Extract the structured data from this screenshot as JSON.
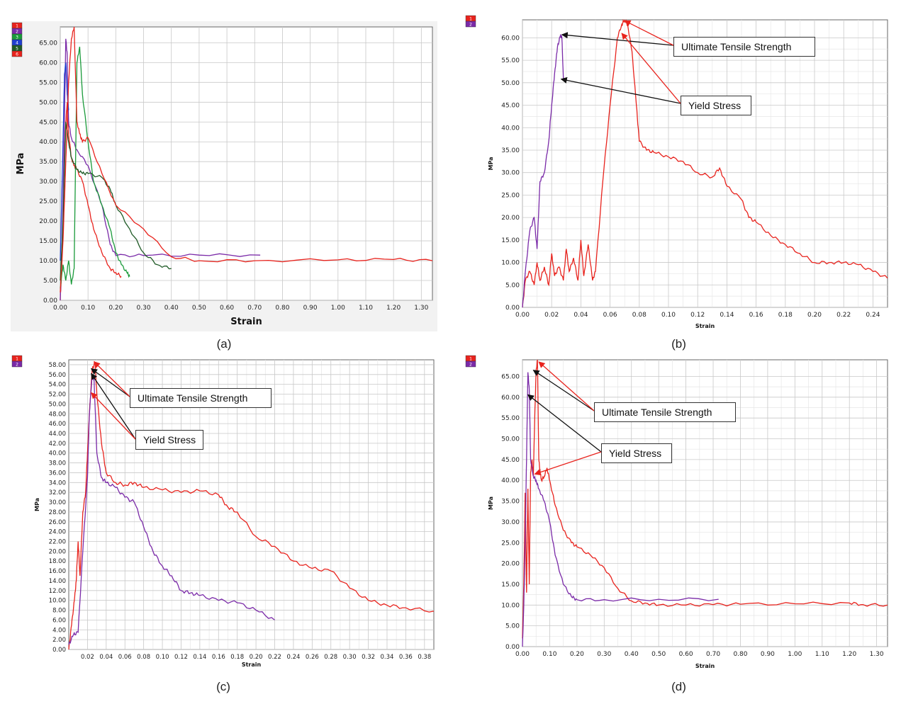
{
  "captions": {
    "a": "(a)",
    "b": "(b)",
    "c": "(c)",
    "d": "(d)"
  },
  "annotations": {
    "uts": "Ultimate Tensile Strength",
    "ys": "Yield Stress"
  },
  "colors": {
    "s1": "#e8231d",
    "s2": "#7a2aa8",
    "s3": "#1a9a3a",
    "s4": "#1f3fd0",
    "s5": "#1f5a26",
    "s6": "#e8231d",
    "grid": "#c8c8c8",
    "plotbg": "#ffffff",
    "framebg": "#f2f2f2"
  },
  "chart_data": [
    {
      "id": "a",
      "type": "line",
      "xlabel": "Strain",
      "ylabel": "MPa",
      "xlim": [
        0,
        1.34
      ],
      "ylim": [
        0,
        69
      ],
      "xticks": [
        "0.00",
        "0.10",
        "0.20",
        "0.30",
        "0.40",
        "0.50",
        "0.60",
        "0.70",
        "0.80",
        "0.90",
        "1.00",
        "1.10",
        "1.20",
        "1.30"
      ],
      "xtick_values": [
        0,
        0.1,
        0.2,
        0.3,
        0.4,
        0.5,
        0.6,
        0.7,
        0.8,
        0.9,
        1.0,
        1.1,
        1.2,
        1.3
      ],
      "yticks": [
        "0.00",
        "5.00",
        "10.00",
        "15.00",
        "20.00",
        "25.00",
        "30.00",
        "35.00",
        "40.00",
        "45.00",
        "50.00",
        "55.00",
        "60.00",
        "65.00"
      ],
      "ytick_values": [
        0,
        5,
        10,
        15,
        20,
        25,
        30,
        35,
        40,
        45,
        50,
        55,
        60,
        65
      ],
      "legend": [
        "1",
        "2",
        "3",
        "4",
        "5",
        "6"
      ],
      "series": [
        {
          "name": "1",
          "color": "#e8231d",
          "x": [
            0,
            0.005,
            0.01,
            0.015,
            0.02,
            0.025,
            0.03,
            0.04,
            0.05,
            0.06,
            0.08,
            0.1,
            0.12,
            0.15,
            0.18,
            0.2,
            0.22
          ],
          "y": [
            0,
            8,
            20,
            35,
            45,
            50,
            42,
            36,
            34,
            33,
            30,
            24,
            18,
            12,
            8,
            7,
            6
          ]
        },
        {
          "name": "2",
          "color": "#7a2aa8",
          "x": [
            0,
            0.005,
            0.01,
            0.015,
            0.02,
            0.025,
            0.03,
            0.04,
            0.06,
            0.1,
            0.15,
            0.18,
            0.2,
            0.3,
            0.5,
            0.72
          ],
          "y": [
            0,
            10,
            25,
            45,
            66,
            62,
            45,
            41,
            38,
            34,
            24,
            14,
            11.3,
            11.3,
            11.4,
            11.4
          ]
        },
        {
          "name": "3",
          "color": "#1a9a3a",
          "x": [
            0,
            0.01,
            0.02,
            0.03,
            0.04,
            0.05,
            0.06,
            0.07,
            0.08,
            0.1,
            0.12,
            0.15,
            0.18,
            0.2,
            0.22,
            0.24,
            0.25
          ],
          "y": [
            3,
            9,
            5,
            10,
            4,
            8,
            60,
            64,
            52,
            40,
            30,
            24,
            18,
            12,
            9,
            7,
            6
          ]
        },
        {
          "name": "4",
          "color": "#1f3fd0",
          "x": [
            0,
            0.01,
            0.015,
            0.02,
            0.025,
            0.03
          ],
          "y": [
            10,
            40,
            57,
            60,
            52,
            48
          ]
        },
        {
          "name": "5",
          "color": "#1f5a26",
          "x": [
            0,
            0.01,
            0.02,
            0.03,
            0.04,
            0.06,
            0.08,
            0.1,
            0.15,
            0.18,
            0.2,
            0.25,
            0.3,
            0.35,
            0.4
          ],
          "y": [
            5,
            20,
            45,
            40,
            36,
            33,
            32,
            32,
            31,
            28,
            24,
            18,
            12,
            9,
            8
          ]
        },
        {
          "name": "6",
          "color": "#e8231d",
          "x": [
            0,
            0.01,
            0.02,
            0.03,
            0.04,
            0.05,
            0.06,
            0.07,
            0.08,
            0.1,
            0.15,
            0.2,
            0.3,
            0.4,
            0.5,
            0.7,
            1.0,
            1.2,
            1.34
          ],
          "y": [
            2,
            15,
            35,
            55,
            66,
            69,
            45,
            42,
            40,
            41,
            32,
            24,
            18,
            11,
            10,
            10,
            10.2,
            10.3,
            10
          ]
        }
      ]
    },
    {
      "id": "b",
      "type": "line",
      "xlabel": "Strain",
      "ylabel": "MPa",
      "xlim": [
        0,
        0.25
      ],
      "ylim": [
        0,
        64
      ],
      "xticks": [
        "0.00",
        "0.02",
        "0.04",
        "0.06",
        "0.08",
        "0.10",
        "0.12",
        "0.14",
        "0.16",
        "0.18",
        "0.20",
        "0.22",
        "0.24"
      ],
      "xtick_values": [
        0,
        0.02,
        0.04,
        0.06,
        0.08,
        0.1,
        0.12,
        0.14,
        0.16,
        0.18,
        0.2,
        0.22,
        0.24
      ],
      "yticks": [
        "0.00",
        "5.00",
        "10.00",
        "15.00",
        "20.00",
        "25.00",
        "30.00",
        "35.00",
        "40.00",
        "45.00",
        "50.00",
        "55.00",
        "60.00"
      ],
      "ytick_values": [
        0,
        5,
        10,
        15,
        20,
        25,
        30,
        35,
        40,
        45,
        50,
        55,
        60
      ],
      "legend": [
        "1",
        "2"
      ],
      "series": [
        {
          "name": "1",
          "color": "#e8231d",
          "x": [
            0,
            0.002,
            0.005,
            0.008,
            0.01,
            0.012,
            0.015,
            0.018,
            0.02,
            0.022,
            0.025,
            0.028,
            0.03,
            0.032,
            0.035,
            0.038,
            0.04,
            0.042,
            0.045,
            0.048,
            0.05,
            0.055,
            0.06,
            0.065,
            0.068,
            0.07,
            0.072,
            0.075,
            0.078,
            0.08,
            0.085,
            0.09,
            0.1,
            0.11,
            0.12,
            0.13,
            0.135,
            0.14,
            0.15,
            0.155,
            0.16,
            0.17,
            0.18,
            0.19,
            0.2,
            0.21,
            0.22,
            0.23,
            0.24,
            0.25
          ],
          "y": [
            0,
            6,
            8,
            5,
            10,
            6,
            9,
            5,
            12,
            7,
            9,
            6,
            13,
            8,
            11,
            6,
            15,
            7,
            14,
            6,
            8,
            28,
            45,
            60,
            63,
            64,
            63,
            57,
            45,
            37,
            35,
            34.5,
            33.5,
            32.5,
            30,
            29,
            31,
            27,
            24,
            20,
            19,
            16,
            14,
            12,
            10,
            10,
            10,
            9.5,
            8,
            6.5
          ]
        },
        {
          "name": "2",
          "color": "#7a2aa8",
          "x": [
            0,
            0.002,
            0.005,
            0.008,
            0.01,
            0.012,
            0.015,
            0.018,
            0.02,
            0.022,
            0.024,
            0.026,
            0.027,
            0.028
          ],
          "y": [
            0,
            8,
            17,
            20,
            13,
            28,
            30,
            37,
            45,
            52,
            58,
            60.5,
            60,
            51
          ]
        }
      ],
      "callouts": [
        {
          "label": "uts",
          "box": [
            960,
            54
          ],
          "targets": [
            [
              0.027,
              60.7
            ],
            [
              0.07,
              63.8
            ]
          ],
          "colors": [
            "#111",
            "#e8231d"
          ]
        },
        {
          "label": "ys",
          "box": [
            965,
            137
          ],
          "targets": [
            [
              0.0265,
              50.8
            ],
            [
              0.068,
              61
            ]
          ],
          "colors": [
            "#111",
            "#e8231d"
          ]
        }
      ]
    },
    {
      "id": "c",
      "type": "line",
      "xlabel": "Strain",
      "ylabel": "MPa",
      "xlim": [
        0,
        0.39
      ],
      "ylim": [
        0,
        59
      ],
      "xticks": [
        "0.02",
        "0.04",
        "0.06",
        "0.08",
        "0.10",
        "0.12",
        "0.14",
        "0.16",
        "0.18",
        "0.20",
        "0.22",
        "0.24",
        "0.26",
        "0.28",
        "0.30",
        "0.32",
        "0.34",
        "0.36",
        "0.38"
      ],
      "xtick_values": [
        0.02,
        0.04,
        0.06,
        0.08,
        0.1,
        0.12,
        0.14,
        0.16,
        0.18,
        0.2,
        0.22,
        0.24,
        0.26,
        0.28,
        0.3,
        0.32,
        0.34,
        0.36,
        0.38
      ],
      "yticks": [
        "0.00",
        "2.00",
        "4.00",
        "6.00",
        "8.00",
        "10.00",
        "12.00",
        "14.00",
        "16.00",
        "18.00",
        "20.00",
        "22.00",
        "24.00",
        "26.00",
        "28.00",
        "30.00",
        "32.00",
        "34.00",
        "36.00",
        "38.00",
        "40.00",
        "42.00",
        "44.00",
        "46.00",
        "48.00",
        "50.00",
        "52.00",
        "54.00",
        "56.00",
        "58.00"
      ],
      "ytick_values": [
        0,
        2,
        4,
        6,
        8,
        10,
        12,
        14,
        16,
        18,
        20,
        22,
        24,
        26,
        28,
        30,
        32,
        34,
        36,
        38,
        40,
        42,
        44,
        46,
        48,
        50,
        52,
        54,
        56,
        58
      ],
      "legend": [
        "1",
        "2"
      ],
      "series": [
        {
          "name": "1",
          "color": "#e8231d",
          "x": [
            0,
            0.003,
            0.006,
            0.008,
            0.01,
            0.012,
            0.015,
            0.018,
            0.02,
            0.022,
            0.025,
            0.028,
            0.03,
            0.035,
            0.04,
            0.05,
            0.06,
            0.07,
            0.08,
            0.1,
            0.12,
            0.14,
            0.16,
            0.17,
            0.18,
            0.2,
            0.22,
            0.24,
            0.26,
            0.28,
            0.3,
            0.32,
            0.34,
            0.36,
            0.39
          ],
          "y": [
            0,
            5,
            10,
            14,
            22,
            15,
            28,
            32,
            40,
            48,
            57,
            58.5,
            52,
            42,
            36,
            34,
            33.5,
            34,
            33,
            32.5,
            32,
            32.3,
            31.5,
            29,
            28,
            23,
            21,
            18,
            16.5,
            16,
            12.5,
            10,
            9,
            8.5,
            7.8
          ]
        },
        {
          "name": "2",
          "color": "#7a2aa8",
          "x": [
            0,
            0.005,
            0.01,
            0.015,
            0.02,
            0.022,
            0.025,
            0.027,
            0.03,
            0.035,
            0.04,
            0.05,
            0.06,
            0.07,
            0.08,
            0.09,
            0.1,
            0.11,
            0.12,
            0.13,
            0.14,
            0.16,
            0.18,
            0.2,
            0.22
          ],
          "y": [
            1,
            3,
            3.5,
            20,
            35,
            48,
            56,
            55,
            40,
            35,
            34,
            33,
            31,
            30,
            25,
            20,
            17,
            15,
            12,
            11.5,
            11,
            10,
            9.5,
            8,
            6
          ]
        }
      ],
      "callouts": [
        {
          "label": "uts",
          "box": [
            183,
            551
          ],
          "targets": [
            [
              0.024,
              57.2
            ],
            [
              0.027,
              58.6
            ]
          ],
          "colors": [
            "#111",
            "#e8231d"
          ]
        },
        {
          "label": "ys",
          "box": [
            191,
            610
          ],
          "targets": [
            [
              0.024,
              56.2
            ],
            [
              0.024,
              52.3
            ]
          ],
          "colors": [
            "#111",
            "#e8231d"
          ]
        }
      ]
    },
    {
      "id": "d",
      "type": "line",
      "xlabel": "Strain",
      "ylabel": "MPa",
      "xlim": [
        0,
        1.34
      ],
      "ylim": [
        0,
        69
      ],
      "xticks": [
        "0.00",
        "0.10",
        "0.20",
        "0.30",
        "0.40",
        "0.50",
        "0.60",
        "0.70",
        "0.80",
        "0.90",
        "1.00",
        "1.10",
        "1.20",
        "1.30"
      ],
      "xtick_values": [
        0,
        0.1,
        0.2,
        0.3,
        0.4,
        0.5,
        0.6,
        0.7,
        0.8,
        0.9,
        1.0,
        1.1,
        1.2,
        1.3
      ],
      "yticks": [
        "0.00",
        "5.00",
        "10.00",
        "15.00",
        "20.00",
        "25.00",
        "30.00",
        "35.00",
        "40.00",
        "45.00",
        "50.00",
        "55.00",
        "60.00",
        "65.00"
      ],
      "ytick_values": [
        0,
        5,
        10,
        15,
        20,
        25,
        30,
        35,
        40,
        45,
        50,
        55,
        60,
        65
      ],
      "legend": [
        "1",
        "2"
      ],
      "series": [
        {
          "name": "1",
          "color": "#e8231d",
          "x": [
            0,
            0.005,
            0.01,
            0.015,
            0.02,
            0.025,
            0.03,
            0.035,
            0.04,
            0.045,
            0.05,
            0.055,
            0.06,
            0.065,
            0.07,
            0.08,
            0.09,
            0.1,
            0.12,
            0.15,
            0.18,
            0.2,
            0.25,
            0.3,
            0.35,
            0.4,
            0.45,
            0.5,
            0.6,
            0.7,
            0.8,
            1.0,
            1.2,
            1.25,
            1.34
          ],
          "y": [
            2,
            15,
            37,
            13,
            38,
            15,
            42,
            45,
            41,
            55,
            66,
            69,
            45,
            42,
            40,
            41,
            43,
            40,
            34,
            28,
            25,
            24,
            22,
            19,
            14,
            11,
            10.5,
            10,
            10,
            10.1,
            10.2,
            10.3,
            10.5,
            10.1,
            10
          ]
        },
        {
          "name": "2",
          "color": "#7a2aa8",
          "x": [
            0,
            0.005,
            0.01,
            0.015,
            0.02,
            0.025,
            0.03,
            0.04,
            0.05,
            0.06,
            0.08,
            0.1,
            0.12,
            0.15,
            0.18,
            0.2,
            0.3,
            0.5,
            0.72
          ],
          "y": [
            0,
            10,
            25,
            45,
            66,
            62,
            45,
            41,
            40,
            38,
            35,
            30,
            22,
            15,
            12,
            11.3,
            11.3,
            11.4,
            11.4
          ]
        }
      ],
      "callouts": [
        {
          "label": "uts",
          "box": [
            840,
            570
          ],
          "targets": [
            [
              0.04,
              66.5
            ],
            [
              0.06,
              68.5
            ]
          ],
          "colors": [
            "#111",
            "#e8231d"
          ]
        },
        {
          "label": "ys",
          "box": [
            850,
            628
          ],
          "targets": [
            [
              0.02,
              60.6
            ],
            [
              0.045,
              41.5
            ]
          ],
          "colors": [
            "#111",
            "#e8231d"
          ]
        }
      ]
    }
  ]
}
